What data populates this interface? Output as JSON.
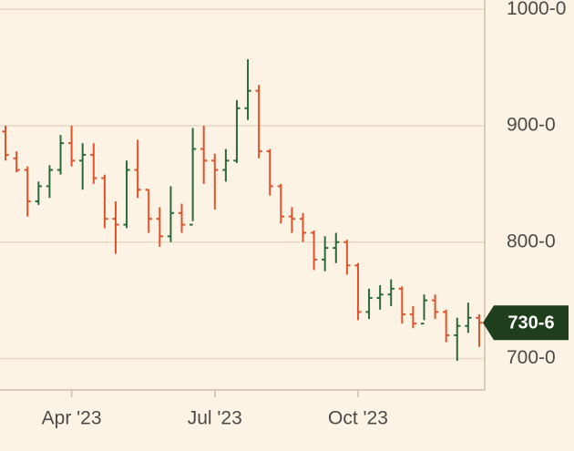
{
  "chart_data": {
    "type": "ohlc",
    "categories": [
      null,
      null,
      null,
      null,
      null,
      null,
      "Apr '23",
      null,
      null,
      null,
      null,
      null,
      null,
      null,
      null,
      null,
      null,
      null,
      null,
      "Jul '23",
      null,
      null,
      null,
      null,
      null,
      null,
      null,
      null,
      null,
      null,
      null,
      null,
      "Oct '23",
      null,
      null,
      null,
      null,
      null,
      null,
      null,
      null,
      null,
      null,
      null
    ],
    "open": [
      895,
      872,
      862,
      835,
      848,
      862,
      885,
      870,
      875,
      855,
      820,
      815,
      862,
      845,
      820,
      805,
      825,
      815,
      880,
      870,
      862,
      870,
      915,
      930,
      878,
      848,
      822,
      820,
      808,
      785,
      795,
      800,
      780,
      740,
      752,
      755,
      760,
      738,
      730,
      750,
      740,
      720,
      728,
      735
    ],
    "high": [
      900,
      878,
      865,
      852,
      866,
      892,
      900,
      885,
      885,
      858,
      835,
      870,
      888,
      845,
      830,
      848,
      833,
      898,
      900,
      876,
      880,
      922,
      957,
      935,
      880,
      850,
      830,
      825,
      810,
      805,
      808,
      802,
      782,
      760,
      763,
      768,
      762,
      745,
      755,
      755,
      742,
      735,
      748,
      738
    ],
    "low": [
      870,
      860,
      822,
      832,
      838,
      858,
      865,
      845,
      850,
      812,
      790,
      812,
      838,
      808,
      796,
      800,
      808,
      818,
      850,
      828,
      852,
      868,
      905,
      872,
      840,
      816,
      808,
      800,
      776,
      775,
      782,
      772,
      733,
      734,
      742,
      745,
      730,
      726,
      733,
      734,
      714,
      698,
      722,
      710
    ],
    "close": [
      875,
      862,
      835,
      848,
      862,
      885,
      870,
      875,
      855,
      820,
      815,
      862,
      845,
      820,
      805,
      825,
      815,
      880,
      870,
      862,
      870,
      915,
      930,
      878,
      848,
      822,
      820,
      808,
      785,
      795,
      800,
      780,
      740,
      752,
      755,
      760,
      738,
      730,
      750,
      740,
      720,
      728,
      735,
      730.75
    ],
    "up_color": "#2a6a3a",
    "down_color": "#e0522a",
    "ylim": [
      673,
      1008
    ],
    "yticks": [
      {
        "value": 700,
        "label": "700-0"
      },
      {
        "value": 800,
        "label": "800-0"
      },
      {
        "value": 900,
        "label": "900-0"
      },
      {
        "value": 1000,
        "label": "1000-0"
      }
    ],
    "grid": true,
    "last_price": {
      "value": 730.75,
      "label": "730-6"
    },
    "last_price_color": "#1f3f1c"
  }
}
